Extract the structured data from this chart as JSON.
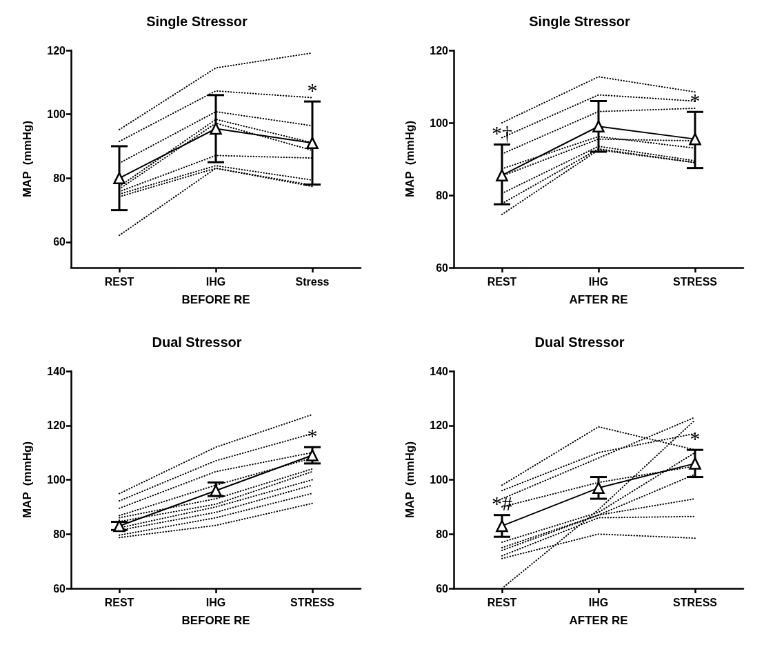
{
  "chart_data": [
    {
      "type": "line",
      "title": "Single Stressor",
      "xlabel": "BEFORE RE",
      "ylabel": "MAP  (mmHg)",
      "categories": [
        "REST",
        "IHG",
        "Stress"
      ],
      "ylim": [
        52,
        120
      ],
      "yticks": [
        60,
        80,
        100,
        120
      ],
      "grid": false,
      "series": [
        {
          "color": "#000000",
          "line_style": "dotted",
          "marker": "none",
          "values": [
            95.2,
            114.5,
            119.2
          ]
        },
        {
          "color": "#000000",
          "line_style": "dotted",
          "marker": "none",
          "values": [
            91.5,
            107.3,
            105.2
          ]
        },
        {
          "color": "#000000",
          "line_style": "dotted",
          "marker": "none",
          "values": [
            84.7,
            100.8,
            96.4
          ]
        },
        {
          "color": "#000000",
          "line_style": "dotted",
          "marker": "none",
          "values": [
            77.4,
            98.4,
            91.1
          ]
        },
        {
          "color": "#000000",
          "line_style": "dotted",
          "marker": "none",
          "values": [
            76.6,
            97.2,
            88.7
          ]
        },
        {
          "color": "#000000",
          "line_style": "dotted",
          "marker": "none",
          "values": [
            75.8,
            87.1,
            86.3
          ]
        },
        {
          "color": "#000000",
          "line_style": "dotted",
          "marker": "none",
          "values": [
            75,
            83.9,
            79.4
          ]
        },
        {
          "color": "#000000",
          "line_style": "dotted",
          "marker": "none",
          "values": [
            74.2,
            83.1,
            77.8
          ]
        },
        {
          "color": "#000000",
          "line_style": "dotted",
          "marker": "none",
          "values": [
            62.1,
            83.1,
            77.4
          ]
        },
        {
          "color": "#000000",
          "line_style": "solid",
          "marker": "triangle",
          "values": [
            80,
            95.5,
            91
          ],
          "errors": [
            [
              70,
              90
            ],
            [
              85,
              106
            ],
            [
              78,
              104
            ]
          ]
        }
      ],
      "annotations": [
        {
          "text": "*",
          "x": "Stress",
          "y": 104
        }
      ]
    },
    {
      "type": "line",
      "title": "Single Stressor",
      "xlabel": "AFTER RE",
      "ylabel": "MAP  (mmHg)",
      "categories": [
        "REST",
        "IHG",
        "STRESS"
      ],
      "ylim": [
        60,
        120
      ],
      "yticks": [
        60,
        80,
        100,
        120
      ],
      "grid": false,
      "series": [
        {
          "color": "#000000",
          "line_style": "dotted",
          "marker": "none",
          "values": [
            100,
            112.7,
            108.5
          ]
        },
        {
          "color": "#000000",
          "line_style": "dotted",
          "marker": "none",
          "values": [
            95.9,
            107.7,
            106
          ]
        },
        {
          "color": "#000000",
          "line_style": "dotted",
          "marker": "none",
          "values": [
            91.4,
            103.1,
            104
          ]
        },
        {
          "color": "#000000",
          "line_style": "dotted",
          "marker": "none",
          "values": [
            87.3,
            96.2,
            93
          ]
        },
        {
          "color": "#000000",
          "line_style": "dotted",
          "marker": "none",
          "values": [
            85.3,
            95.5,
            95
          ]
        },
        {
          "color": "#000000",
          "line_style": "dotted",
          "marker": "none",
          "values": [
            80.5,
            93.5,
            89.5
          ]
        },
        {
          "color": "#000000",
          "line_style": "dotted",
          "marker": "none",
          "values": [
            77.7,
            92.8,
            89
          ]
        },
        {
          "color": "#000000",
          "line_style": "dotted",
          "marker": "none",
          "values": [
            74.7,
            92.5,
            89
          ]
        },
        {
          "color": "#000000",
          "line_style": "solid",
          "marker": "triangle",
          "values": [
            85.5,
            99,
            95.5
          ],
          "errors": [
            [
              77.5,
              94
            ],
            [
              92,
              106
            ],
            [
              87.5,
              103
            ]
          ]
        }
      ],
      "annotations": [
        {
          "text": "*†",
          "x": "REST",
          "y": 94
        },
        {
          "text": "*",
          "x": "STRESS",
          "y": 103
        }
      ]
    },
    {
      "type": "line",
      "title": "Dual Stressor",
      "xlabel": "BEFORE RE",
      "ylabel": "MAP  (mmHg)",
      "categories": [
        "REST",
        "IHG",
        "STRESS"
      ],
      "ylim": [
        60,
        140
      ],
      "yticks": [
        60,
        80,
        100,
        120,
        140
      ],
      "grid": false,
      "series": [
        {
          "color": "#000000",
          "line_style": "dotted",
          "marker": "none",
          "values": [
            94.9,
            112,
            124
          ]
        },
        {
          "color": "#000000",
          "line_style": "dotted",
          "marker": "none",
          "values": [
            92.2,
            107,
            117
          ]
        },
        {
          "color": "#000000",
          "line_style": "dotted",
          "marker": "none",
          "values": [
            89.5,
            103,
            110
          ]
        },
        {
          "color": "#000000",
          "line_style": "dotted",
          "marker": "none",
          "values": [
            86.8,
            98,
            108
          ]
        },
        {
          "color": "#000000",
          "line_style": "dotted",
          "marker": "none",
          "values": [
            86,
            93,
            104
          ]
        },
        {
          "color": "#000000",
          "line_style": "dotted",
          "marker": "none",
          "values": [
            84.6,
            91,
            103
          ]
        },
        {
          "color": "#000000",
          "line_style": "dotted",
          "marker": "none",
          "values": [
            82.3,
            90,
            100
          ]
        },
        {
          "color": "#000000",
          "line_style": "dotted",
          "marker": "none",
          "values": [
            81.4,
            88,
            98
          ]
        },
        {
          "color": "#000000",
          "line_style": "dotted",
          "marker": "none",
          "values": [
            79.6,
            86,
            95
          ]
        },
        {
          "color": "#000000",
          "line_style": "dotted",
          "marker": "none",
          "values": [
            78.7,
            83.2,
            91.3
          ]
        },
        {
          "color": "#000000",
          "line_style": "solid",
          "marker": "triangle",
          "values": [
            83,
            96,
            109
          ],
          "errors": [
            [
              81.5,
              84.5
            ],
            [
              94,
              99
            ],
            [
              106,
              112
            ]
          ]
        }
      ],
      "annotations": [
        {
          "text": "*",
          "x": "STRESS",
          "y": 112
        }
      ]
    },
    {
      "type": "line",
      "title": "Dual Stressor",
      "xlabel": "AFTER RE",
      "ylabel": "MAP  (mmHg)",
      "categories": [
        "REST",
        "IHG",
        "STRESS"
      ],
      "ylim": [
        60,
        140
      ],
      "yticks": [
        60,
        80,
        100,
        120,
        140
      ],
      "grid": false,
      "series": [
        {
          "color": "#000000",
          "line_style": "dotted",
          "marker": "none",
          "values": [
            98,
            119.5,
            111
          ]
        },
        {
          "color": "#000000",
          "line_style": "dotted",
          "marker": "none",
          "values": [
            96,
            110,
            117
          ]
        },
        {
          "color": "#000000",
          "line_style": "dotted",
          "marker": "none",
          "values": [
            93,
            108,
            123
          ]
        },
        {
          "color": "#000000",
          "line_style": "dotted",
          "marker": "none",
          "values": [
            90,
            99,
            105
          ]
        },
        {
          "color": "#000000",
          "line_style": "dotted",
          "marker": "none",
          "values": [
            77,
            88,
            110
          ]
        },
        {
          "color": "#000000",
          "line_style": "dotted",
          "marker": "none",
          "values": [
            75,
            87,
            102
          ]
        },
        {
          "color": "#000000",
          "line_style": "dotted",
          "marker": "none",
          "values": [
            74,
            87,
            93
          ]
        },
        {
          "color": "#000000",
          "line_style": "dotted",
          "marker": "none",
          "values": [
            72,
            86,
            86.5
          ]
        },
        {
          "color": "#000000",
          "line_style": "dotted",
          "marker": "none",
          "values": [
            71,
            80,
            78.5
          ]
        },
        {
          "color": "#000000",
          "line_style": "dotted",
          "marker": "none",
          "values": [
            60,
            89,
            122
          ]
        },
        {
          "color": "#000000",
          "line_style": "solid",
          "marker": "triangle",
          "values": [
            83,
            97,
            106
          ],
          "errors": [
            [
              79,
              87
            ],
            [
              93,
              101
            ],
            [
              101,
              111
            ]
          ]
        }
      ],
      "annotations": [
        {
          "text": "*#",
          "x": "REST",
          "y": 87
        },
        {
          "text": "*",
          "x": "STRESS",
          "y": 111
        }
      ]
    }
  ]
}
